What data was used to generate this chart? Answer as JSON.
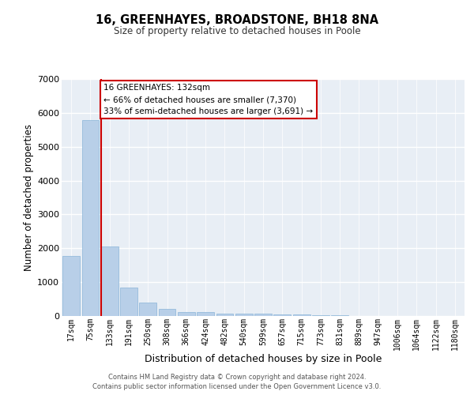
{
  "title": "16, GREENHAYES, BROADSTONE, BH18 8NA",
  "subtitle": "Size of property relative to detached houses in Poole",
  "xlabel": "Distribution of detached houses by size in Poole",
  "ylabel": "Number of detached properties",
  "bar_labels": [
    "17sqm",
    "75sqm",
    "133sqm",
    "191sqm",
    "250sqm",
    "308sqm",
    "366sqm",
    "424sqm",
    "482sqm",
    "540sqm",
    "599sqm",
    "657sqm",
    "715sqm",
    "773sqm",
    "831sqm",
    "889sqm",
    "947sqm",
    "1006sqm",
    "1064sqm",
    "1122sqm",
    "1180sqm"
  ],
  "bar_values": [
    1780,
    5780,
    2060,
    830,
    390,
    220,
    110,
    110,
    70,
    70,
    70,
    50,
    50,
    30,
    20,
    10,
    10,
    5,
    5,
    5,
    5
  ],
  "bar_color": "#b8cfe8",
  "bar_edgecolor": "#8ab4d8",
  "property_line_index": 2,
  "property_line_color": "#cc0000",
  "annotation_text": "16 GREENHAYES: 132sqm\n← 66% of detached houses are smaller (7,370)\n33% of semi-detached houses are larger (3,691) →",
  "annotation_box_edgecolor": "#cc0000",
  "ylim": [
    0,
    7000
  ],
  "yticks": [
    0,
    1000,
    2000,
    3000,
    4000,
    5000,
    6000,
    7000
  ],
  "bg_color": "#e8eef5",
  "footer_line1": "Contains HM Land Registry data © Crown copyright and database right 2024.",
  "footer_line2": "Contains public sector information licensed under the Open Government Licence v3.0."
}
